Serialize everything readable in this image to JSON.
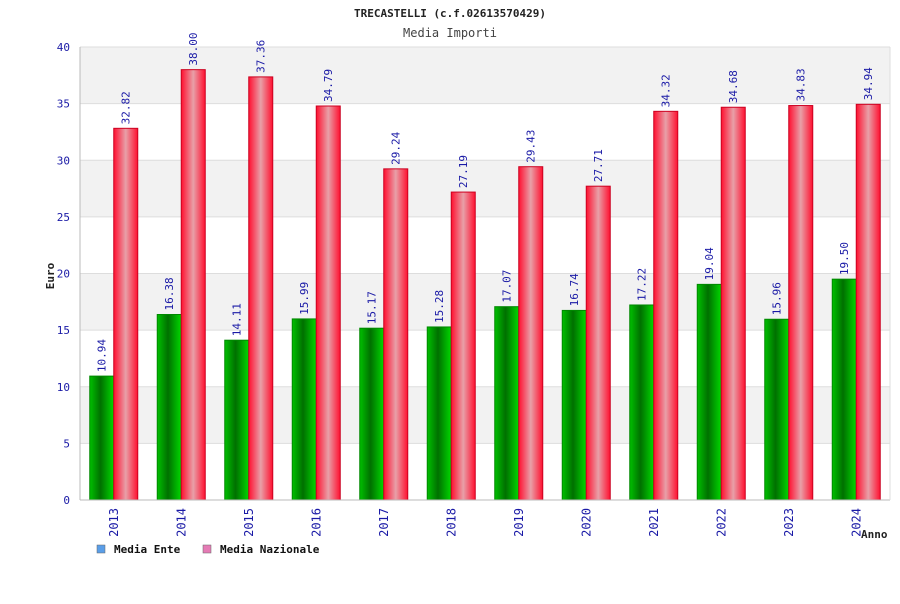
{
  "chart_data": {
    "type": "bar",
    "title": "TRECASTELLI (c.f.02613570429)",
    "subtitle": "Media Importi",
    "xlabel": "Anno",
    "ylabel": "Euro",
    "ylim": [
      0,
      40
    ],
    "yticks": [
      0,
      5,
      10,
      15,
      20,
      25,
      30,
      35,
      40
    ],
    "grid": true,
    "legend_placement": "bottom-left",
    "categories": [
      "2013",
      "2014",
      "2015",
      "2016",
      "2017",
      "2018",
      "2019",
      "2020",
      "2021",
      "2022",
      "2023",
      "2024"
    ],
    "series": [
      {
        "name": "Media Ente",
        "color": "#00a000",
        "legend_color": "#5a9ee8",
        "values": [
          10.94,
          16.38,
          14.11,
          15.99,
          15.17,
          15.28,
          17.07,
          16.74,
          17.22,
          19.04,
          15.96,
          19.5
        ],
        "labels": [
          "10.94",
          "16.38",
          "14.11",
          "15.99",
          "15.17",
          "15.28",
          "17.07",
          "16.74",
          "17.22",
          "19.04",
          "15.96",
          "19.50"
        ]
      },
      {
        "name": "Media Nazionale",
        "color": "#e8102a",
        "legend_color": "#e57bb5",
        "values": [
          32.82,
          38.0,
          37.36,
          34.79,
          29.24,
          27.19,
          29.43,
          27.71,
          34.32,
          34.68,
          34.83,
          34.94
        ],
        "labels": [
          "32.82",
          "38.00",
          "37.36",
          "34.79",
          "29.24",
          "27.19",
          "29.43",
          "27.71",
          "34.32",
          "34.68",
          "34.83",
          "34.94"
        ]
      }
    ]
  }
}
